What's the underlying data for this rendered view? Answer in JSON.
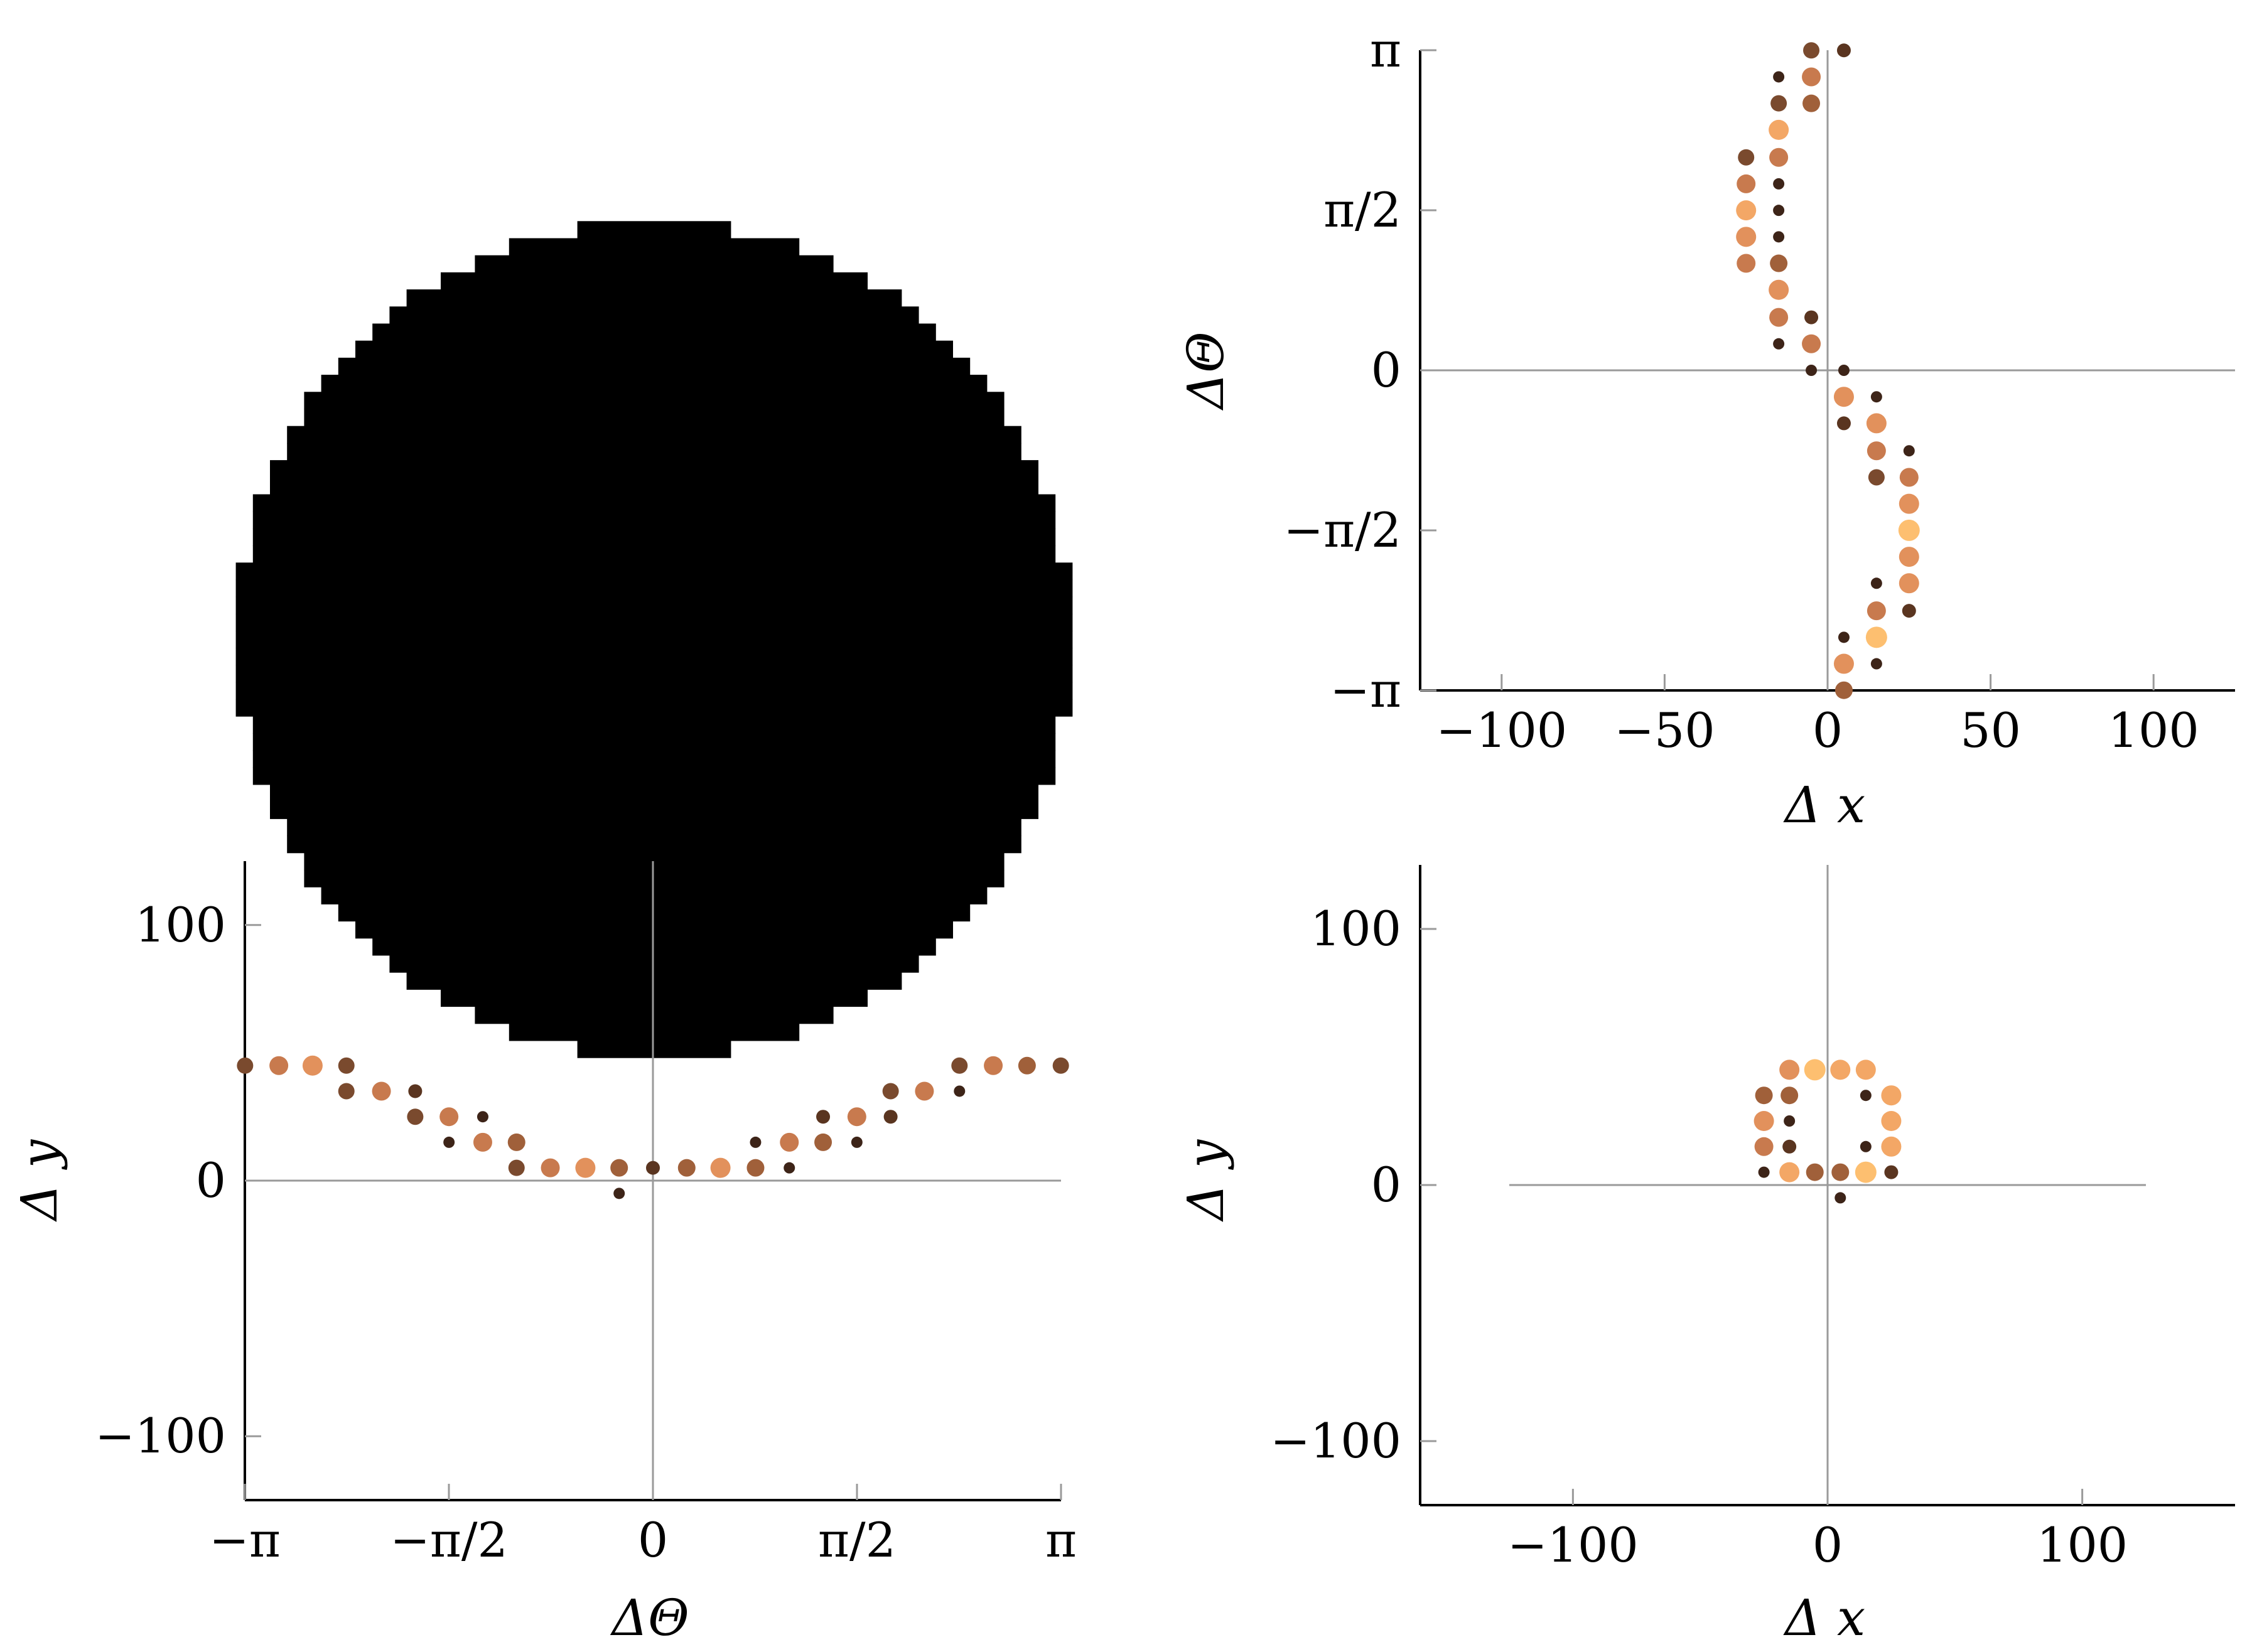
{
  "colors": {
    "background": "#ffffff",
    "axis": "#000000",
    "zero_line": "#9a9a9a",
    "shape": "#000000",
    "point_scale": [
      "#3d2418",
      "#5a3520",
      "#7a4a2e",
      "#a0603a",
      "#c87a4e",
      "#e2915c",
      "#f3a766",
      "#fdbf70"
    ]
  },
  "shape_panel": {
    "description_shape": "pixelated disc",
    "grid_size": 49,
    "radius_cells": 24.5
  },
  "chart_data": [
    {
      "type": "scatter",
      "panel": "top-right",
      "title": "",
      "xlabel": "Δ x",
      "ylabel": "ΔΘ",
      "xlim": [
        -125,
        125
      ],
      "ylim": [
        -3.1416,
        3.1416
      ],
      "xticks": [
        -100,
        -50,
        0,
        50,
        100
      ],
      "xtick_labels": [
        "−100",
        "−50",
        "0",
        "50",
        "100"
      ],
      "yticks": [
        -3.1416,
        -1.5708,
        0,
        1.5708,
        3.1416
      ],
      "ytick_labels": [
        "−π",
        "−π/2",
        "0",
        "π/2",
        "π"
      ],
      "grid": false,
      "zero_lines": true,
      "points": [
        {
          "x": -5,
          "y": 3.14,
          "w": 2
        },
        {
          "x": 5,
          "y": 3.14,
          "w": 1
        },
        {
          "x": -15,
          "y": 2.88,
          "w": 0
        },
        {
          "x": -5,
          "y": 2.88,
          "w": 4
        },
        {
          "x": -15,
          "y": 2.62,
          "w": 2
        },
        {
          "x": -5,
          "y": 2.62,
          "w": 3
        },
        {
          "x": -15,
          "y": 2.36,
          "w": 6
        },
        {
          "x": -25,
          "y": 2.09,
          "w": 2
        },
        {
          "x": -15,
          "y": 2.09,
          "w": 4
        },
        {
          "x": -25,
          "y": 1.83,
          "w": 4
        },
        {
          "x": -15,
          "y": 1.83,
          "w": 0
        },
        {
          "x": -25,
          "y": 1.57,
          "w": 6
        },
        {
          "x": -15,
          "y": 1.57,
          "w": 0
        },
        {
          "x": -25,
          "y": 1.31,
          "w": 5
        },
        {
          "x": -15,
          "y": 1.31,
          "w": 0
        },
        {
          "x": -25,
          "y": 1.05,
          "w": 4
        },
        {
          "x": -15,
          "y": 1.05,
          "w": 3
        },
        {
          "x": -15,
          "y": 0.79,
          "w": 5
        },
        {
          "x": -15,
          "y": 0.52,
          "w": 4
        },
        {
          "x": -5,
          "y": 0.52,
          "w": 1
        },
        {
          "x": -15,
          "y": 0.26,
          "w": 0
        },
        {
          "x": -5,
          "y": 0.26,
          "w": 4
        },
        {
          "x": -5,
          "y": 0.0,
          "w": 0
        },
        {
          "x": 5,
          "y": 0.0,
          "w": 0
        },
        {
          "x": 5,
          "y": -0.26,
          "w": 5
        },
        {
          "x": 15,
          "y": -0.26,
          "w": 0
        },
        {
          "x": 5,
          "y": -0.52,
          "w": 1
        },
        {
          "x": 15,
          "y": -0.52,
          "w": 5
        },
        {
          "x": 15,
          "y": -0.79,
          "w": 4
        },
        {
          "x": 25,
          "y": -0.79,
          "w": 0
        },
        {
          "x": 15,
          "y": -1.05,
          "w": 2
        },
        {
          "x": 25,
          "y": -1.05,
          "w": 4
        },
        {
          "x": 25,
          "y": -1.31,
          "w": 5
        },
        {
          "x": 25,
          "y": -1.57,
          "w": 7
        },
        {
          "x": 25,
          "y": -1.83,
          "w": 5
        },
        {
          "x": 15,
          "y": -2.09,
          "w": 0
        },
        {
          "x": 25,
          "y": -2.09,
          "w": 5
        },
        {
          "x": 15,
          "y": -2.36,
          "w": 4
        },
        {
          "x": 25,
          "y": -2.36,
          "w": 1
        },
        {
          "x": 5,
          "y": -2.62,
          "w": 0
        },
        {
          "x": 15,
          "y": -2.62,
          "w": 7
        },
        {
          "x": 5,
          "y": -2.88,
          "w": 5
        },
        {
          "x": 15,
          "y": -2.88,
          "w": 0
        },
        {
          "x": 5,
          "y": -3.14,
          "w": 3
        }
      ]
    },
    {
      "type": "scatter",
      "panel": "bottom-left",
      "title": "",
      "xlabel": "ΔΘ",
      "ylabel": "Δ y",
      "xlim": [
        -3.1416,
        3.1416
      ],
      "ylim": [
        -125,
        125
      ],
      "xticks": [
        -3.1416,
        -1.5708,
        0,
        1.5708,
        3.1416
      ],
      "xtick_labels": [
        "−π",
        "−π/2",
        "0",
        "π/2",
        "π"
      ],
      "yticks": [
        -100,
        0,
        100
      ],
      "ytick_labels": [
        "−100",
        "0",
        "100"
      ],
      "grid": false,
      "zero_lines": true,
      "points": [
        {
          "x": -3.14,
          "y": 45,
          "w": 2
        },
        {
          "x": -2.88,
          "y": 45,
          "w": 4
        },
        {
          "x": -2.62,
          "y": 45,
          "w": 5
        },
        {
          "x": -2.36,
          "y": 45,
          "w": 2
        },
        {
          "x": -2.36,
          "y": 35,
          "w": 2
        },
        {
          "x": -2.09,
          "y": 35,
          "w": 4
        },
        {
          "x": -1.83,
          "y": 35,
          "w": 1
        },
        {
          "x": -1.83,
          "y": 25,
          "w": 2
        },
        {
          "x": -1.57,
          "y": 25,
          "w": 4
        },
        {
          "x": -1.57,
          "y": 15,
          "w": 0
        },
        {
          "x": -1.31,
          "y": 25,
          "w": 0
        },
        {
          "x": -1.31,
          "y": 15,
          "w": 4
        },
        {
          "x": -1.05,
          "y": 15,
          "w": 3
        },
        {
          "x": -1.05,
          "y": 5,
          "w": 2
        },
        {
          "x": -0.79,
          "y": 5,
          "w": 4
        },
        {
          "x": -0.52,
          "y": 5,
          "w": 5
        },
        {
          "x": -0.26,
          "y": 5,
          "w": 3
        },
        {
          "x": -0.26,
          "y": -5,
          "w": 0
        },
        {
          "x": 0.0,
          "y": 5,
          "w": 1
        },
        {
          "x": 0.26,
          "y": 5,
          "w": 3
        },
        {
          "x": 0.52,
          "y": 5,
          "w": 5
        },
        {
          "x": 0.79,
          "y": 5,
          "w": 3
        },
        {
          "x": 0.79,
          "y": 15,
          "w": 0
        },
        {
          "x": 1.05,
          "y": 15,
          "w": 4
        },
        {
          "x": 1.05,
          "y": 5,
          "w": 0
        },
        {
          "x": 1.31,
          "y": 15,
          "w": 3
        },
        {
          "x": 1.31,
          "y": 25,
          "w": 1
        },
        {
          "x": 1.57,
          "y": 25,
          "w": 4
        },
        {
          "x": 1.57,
          "y": 15,
          "w": 0
        },
        {
          "x": 1.83,
          "y": 25,
          "w": 1
        },
        {
          "x": 1.83,
          "y": 35,
          "w": 2
        },
        {
          "x": 2.09,
          "y": 35,
          "w": 4
        },
        {
          "x": 2.36,
          "y": 45,
          "w": 2
        },
        {
          "x": 2.36,
          "y": 35,
          "w": 0
        },
        {
          "x": 2.62,
          "y": 45,
          "w": 4
        },
        {
          "x": 2.88,
          "y": 45,
          "w": 3
        },
        {
          "x": 3.14,
          "y": 45,
          "w": 2
        }
      ]
    },
    {
      "type": "scatter",
      "panel": "bottom-right",
      "title": "",
      "xlabel": "Δ x",
      "ylabel": "Δ y",
      "xlim": [
        -160,
        160
      ],
      "ylim": [
        -125,
        125
      ],
      "xticks": [
        -100,
        0,
        100
      ],
      "xtick_labels": [
        "−100",
        "0",
        "100"
      ],
      "yticks": [
        -100,
        0,
        100
      ],
      "ytick_labels": [
        "−100",
        "0",
        "100"
      ],
      "grid": false,
      "zero_lines": true,
      "hline_range": [
        -125,
        125
      ],
      "points": [
        {
          "x": -15,
          "y": 45,
          "w": 5
        },
        {
          "x": -5,
          "y": 45,
          "w": 7
        },
        {
          "x": 5,
          "y": 45,
          "w": 6
        },
        {
          "x": 15,
          "y": 45,
          "w": 6
        },
        {
          "x": -25,
          "y": 35,
          "w": 3
        },
        {
          "x": -15,
          "y": 35,
          "w": 3
        },
        {
          "x": 15,
          "y": 35,
          "w": 0
        },
        {
          "x": 25,
          "y": 35,
          "w": 6
        },
        {
          "x": -25,
          "y": 25,
          "w": 5
        },
        {
          "x": -15,
          "y": 25,
          "w": 0
        },
        {
          "x": 25,
          "y": 25,
          "w": 6
        },
        {
          "x": -25,
          "y": 15,
          "w": 4
        },
        {
          "x": -15,
          "y": 15,
          "w": 1
        },
        {
          "x": 15,
          "y": 15,
          "w": 0
        },
        {
          "x": 25,
          "y": 15,
          "w": 6
        },
        {
          "x": -25,
          "y": 5,
          "w": 0
        },
        {
          "x": -15,
          "y": 5,
          "w": 6
        },
        {
          "x": -5,
          "y": 5,
          "w": 3
        },
        {
          "x": 5,
          "y": 5,
          "w": 3
        },
        {
          "x": 15,
          "y": 5,
          "w": 7
        },
        {
          "x": 25,
          "y": 5,
          "w": 1
        },
        {
          "x": 5,
          "y": -5,
          "w": 0
        }
      ]
    }
  ]
}
